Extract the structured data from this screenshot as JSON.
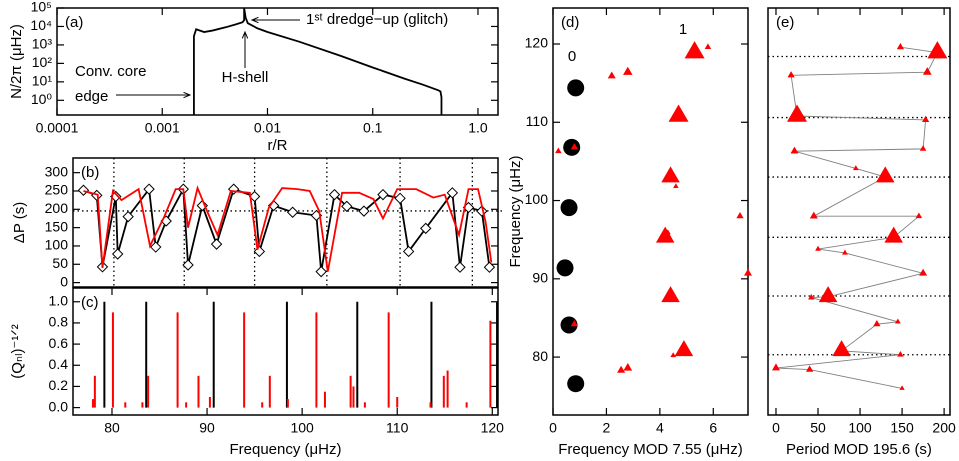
{
  "chart_data": [
    {
      "type": "line",
      "panel_label": "(a)",
      "xlabel": "r/R",
      "ylabel": "N/2π (μHz)",
      "xscale": "log",
      "yscale": "log",
      "xlim": [
        0.0001,
        1.55
      ],
      "ylim": [
        0.16,
        100000
      ],
      "xticks": [
        0.0001,
        0.001,
        0.01,
        0.1,
        {
          "value": 1,
          "label": "1.0"
        }
      ],
      "yticks": [
        {
          "value": 1,
          "label": "10⁰"
        },
        {
          "value": 10,
          "label": "10¹"
        },
        {
          "value": 100,
          "label": "10²"
        },
        {
          "value": 1000,
          "label": "10³"
        },
        {
          "value": 10000,
          "label": "10⁴"
        },
        {
          "value": 100000,
          "label": "10⁵"
        }
      ],
      "x": [
        0.002,
        0.002,
        0.0021,
        0.0025,
        0.003,
        0.004,
        0.005,
        0.0058,
        0.006,
        0.006,
        0.0062,
        0.0065,
        0.008,
        0.01,
        0.02,
        0.05,
        0.1,
        0.2,
        0.3,
        0.42,
        0.44,
        0.45,
        0.45
      ],
      "series": [
        {
          "color": "#000000",
          "values": [
            0.16,
            3000,
            7000,
            5000,
            6000,
            9000,
            13000,
            17000,
            22000,
            100000,
            30000,
            15000,
            8000,
            5000,
            1500,
            250,
            60,
            15,
            7,
            3.5,
            3,
            1.5,
            0.16
          ]
        }
      ],
      "annotations": [
        "1ˢᵗ dredge−up (glitch)",
        "H-shell",
        "Conv. core",
        "edge"
      ]
    },
    {
      "type": "line",
      "panel_label": "(b)",
      "ylabel": "ΔP (s)",
      "xlim": [
        75.9,
        120.6
      ],
      "ylim": [
        -12,
        340
      ],
      "yticks": [
        0,
        50,
        100,
        150,
        200,
        250,
        300
      ],
      "vlines": [
        80.2,
        87.6,
        95.0,
        102.6,
        110.3,
        117.9
      ],
      "hline": 195.6,
      "series": [
        {
          "color": "#000000",
          "marker": "diamond",
          "x": [
            77.0,
            78.4,
            79.0,
            80.4,
            80.6,
            81.7,
            83.9,
            84.6,
            85.7,
            87.5,
            88.0,
            89.5,
            91.0,
            92.8,
            95.0,
            95.5,
            97.0,
            99.0,
            101.5,
            102.0,
            103.4,
            104.7,
            106.5,
            108.5,
            110.3,
            111.2,
            113.0,
            115.8,
            116.6,
            117.5,
            118.9,
            119.7
          ],
          "values": [
            252,
            238,
            43,
            235,
            78,
            180,
            255,
            97,
            168,
            255,
            48,
            210,
            105,
            255,
            235,
            85,
            210,
            192,
            183,
            30,
            240,
            208,
            195,
            240,
            230,
            85,
            148,
            245,
            42,
            205,
            195,
            42
          ]
        },
        {
          "color": "#ff0000",
          "x": [
            77.0,
            78.5,
            79.0,
            80.1,
            81.0,
            82.8,
            84.0,
            85.5,
            86.7,
            87.5,
            88.0,
            89.0,
            90.0,
            91.1,
            92.5,
            94.5,
            95.3,
            96.5,
            97.9,
            99.5,
            100.8,
            101.8,
            102.7,
            104.2,
            106.0,
            107.5,
            108.5,
            110.0,
            112.0,
            113.8,
            115.0,
            116.5,
            117.5,
            118.5,
            119.3,
            119.9
          ],
          "values": [
            250,
            240,
            40,
            250,
            225,
            255,
            100,
            180,
            255,
            255,
            150,
            258,
            195,
            130,
            250,
            245,
            90,
            205,
            258,
            255,
            250,
            195,
            30,
            245,
            245,
            228,
            175,
            255,
            255,
            232,
            240,
            130,
            255,
            255,
            165,
            55
          ]
        }
      ]
    },
    {
      "type": "bar",
      "panel_label": "(c)",
      "xlabel": "Frequency (μHz)",
      "ylabel": "(Qₙₗ)⁻¹ᐟ²",
      "xlim": [
        75.9,
        120.6
      ],
      "ylim": [
        -0.07,
        1.13
      ],
      "xticks": [
        80,
        90,
        100,
        110,
        120
      ],
      "yticks": [
        {
          "value": 0,
          "label": "0.0"
        },
        0.2,
        0.4,
        0.6,
        0.8,
        {
          "value": 1,
          "label": "1.0"
        }
      ],
      "series": [
        {
          "color": "#000000",
          "x": [
            79.2,
            83.6,
            90.7,
            98.4,
            105.8,
            113.6,
            120.5
          ],
          "values": [
            1,
            1,
            1,
            1,
            1,
            1,
            1
          ]
        },
        {
          "color": "#ff0000",
          "x": [
            78.0,
            78.2,
            80.1,
            81.4,
            83.2,
            83.8,
            86.9,
            87.8,
            89.1,
            90.3,
            93.9,
            95.8,
            96.6,
            98.5,
            101.5,
            102.4,
            105.1,
            105.4,
            106.6,
            109.1,
            110.0,
            113.5,
            114.9,
            115.3,
            117.3,
            119.8
          ],
          "values": [
            0.08,
            0.3,
            0.9,
            0.05,
            0.05,
            0.3,
            0.9,
            0.05,
            0.3,
            0.1,
            0.9,
            0.05,
            0.3,
            0.08,
            0.9,
            0.15,
            0.3,
            0.2,
            0.05,
            0.9,
            0.1,
            0.05,
            0.3,
            0.35,
            0.05,
            0.82
          ]
        }
      ]
    },
    {
      "type": "scatter",
      "panel_label": "(d)",
      "xlabel": "Frequency MOD 7.55 (μHz)",
      "ylabel": "Frequency (μHz)",
      "xlim": [
        0,
        7.3
      ],
      "ylim": [
        72.6,
        124.6
      ],
      "xticks": [
        0,
        2,
        4,
        6
      ],
      "yticks": [
        80,
        90,
        100,
        110,
        120
      ],
      "series": [
        {
          "name": "0",
          "marker": "circle",
          "color": "#000000",
          "x": [
            0.85,
            0.6,
            0.45,
            0.6,
            0.7,
            0.85
          ],
          "y": [
            76.6,
            84.1,
            91.4,
            99.1,
            106.8,
            114.4
          ]
        },
        {
          "name": "1",
          "marker": "triangle",
          "color": "#ff0000",
          "x": [
            5.3,
            5.8,
            2.8,
            2.2,
            4.7,
            0.8,
            0.2,
            4.4,
            4.6,
            7.0,
            4.2,
            4.3,
            7.3,
            4.4,
            0.8,
            4.9,
            4.5,
            2.8,
            2.55
          ],
          "y": [
            118.9,
            119.6,
            116.4,
            115.9,
            110.8,
            106.8,
            106.3,
            103.0,
            101.8,
            98.0,
            95.3,
            95.9,
            90.7,
            87.7,
            84.2,
            80.8,
            80.2,
            78.6,
            78.3
          ],
          "sizes": [
            1,
            0.1,
            0.3,
            0.2,
            1,
            0.15,
            0.1,
            0.9,
            0.03,
            0.15,
            0.9,
            0.05,
            0.2,
            0.9,
            0.15,
            0.9,
            0.05,
            0.25,
            0.2
          ]
        }
      ]
    },
    {
      "type": "scatter",
      "panel_label": "(e)",
      "xlabel": "Period MOD 195.6 (s)",
      "xlim": [
        -9.5,
        207
      ],
      "ylim": [
        72.6,
        124.6
      ],
      "xticks": [
        0,
        50,
        100,
        150,
        200
      ],
      "hlines": [
        118.4,
        110.6,
        103.0,
        95.3,
        87.8,
        80.3
      ],
      "line_color": "#808080",
      "series": [
        {
          "marker": "triangle",
          "color": "#ff0000",
          "x": [
            148,
            192,
            180,
            18,
            25,
            178,
            175,
            22,
            95,
            130,
            45,
            170,
            140,
            50,
            82,
            175,
            62,
            42,
            145,
            120,
            78,
            148,
            0,
            40,
            150
          ],
          "y": [
            119.6,
            118.9,
            116.4,
            116.0,
            110.8,
            110.3,
            106.6,
            106.3,
            104.1,
            103.0,
            98.0,
            98.0,
            95.3,
            93.8,
            93.3,
            90.7,
            87.7,
            87.6,
            84.5,
            84.2,
            80.8,
            80.3,
            78.6,
            78.4,
            76.0
          ],
          "sizes": [
            0.15,
            1,
            0.25,
            0.15,
            1,
            0.15,
            0.1,
            0.2,
            0.05,
            0.9,
            0.2,
            0.1,
            0.9,
            0.05,
            0.05,
            0.2,
            0.9,
            0.1,
            0.05,
            0.15,
            0.9,
            0.1,
            0.2,
            0.15,
            0.02
          ]
        }
      ]
    }
  ]
}
